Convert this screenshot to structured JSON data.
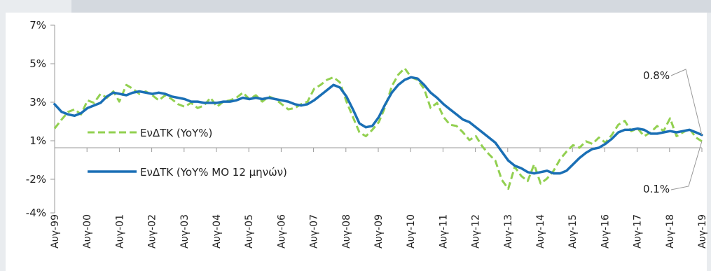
{
  "chart_data": {
    "type": "line",
    "title": "",
    "xlabel": "",
    "ylabel": "",
    "ylim": [
      -4,
      7
    ],
    "y_ticks": [
      "7%",
      "5%",
      "3%",
      "1%",
      "-2%",
      "-4%"
    ],
    "x_ticks": [
      "Αυγ-99",
      "Αυγ-00",
      "Αυγ-01",
      "Αυγ-02",
      "Αυγ-03",
      "Αυγ-04",
      "Αυγ-05",
      "Αυγ-06",
      "Αυγ-07",
      "Αυγ-08",
      "Αυγ-09",
      "Αυγ-10",
      "Αυγ-11",
      "Αυγ-12",
      "Αυγ-13",
      "Αυγ-14",
      "Αυγ-15",
      "Αυγ-16",
      "Αυγ-17",
      "Αυγ-18",
      "Αυγ-19"
    ],
    "x_range": [
      1999.583,
      2019.583
    ],
    "legend_position": "left",
    "grid": false,
    "series": [
      {
        "name": "ΕνΔΤΚ (YoY%)",
        "style": "dashed",
        "color": "#92d050",
        "points": [
          [
            1999.58,
            1.5
          ],
          [
            1999.8,
            2.2
          ],
          [
            2000.0,
            2.8
          ],
          [
            2000.2,
            3.0
          ],
          [
            2000.4,
            2.6
          ],
          [
            2000.6,
            3.7
          ],
          [
            2000.8,
            3.5
          ],
          [
            2001.0,
            4.2
          ],
          [
            2001.2,
            3.9
          ],
          [
            2001.4,
            4.4
          ],
          [
            2001.58,
            3.6
          ],
          [
            2001.8,
            4.9
          ],
          [
            2002.0,
            4.6
          ],
          [
            2002.2,
            4.2
          ],
          [
            2002.4,
            4.4
          ],
          [
            2002.6,
            4.1
          ],
          [
            2002.8,
            3.7
          ],
          [
            2003.0,
            4.1
          ],
          [
            2003.2,
            3.8
          ],
          [
            2003.4,
            3.4
          ],
          [
            2003.6,
            3.2
          ],
          [
            2003.8,
            3.5
          ],
          [
            2004.0,
            3.1
          ],
          [
            2004.2,
            3.3
          ],
          [
            2004.4,
            3.9
          ],
          [
            2004.6,
            3.2
          ],
          [
            2004.8,
            3.6
          ],
          [
            2005.0,
            3.7
          ],
          [
            2005.2,
            3.9
          ],
          [
            2005.4,
            4.3
          ],
          [
            2005.6,
            3.8
          ],
          [
            2005.8,
            4.1
          ],
          [
            2006.0,
            3.6
          ],
          [
            2006.2,
            4.0
          ],
          [
            2006.4,
            3.8
          ],
          [
            2006.6,
            3.4
          ],
          [
            2006.8,
            3.0
          ],
          [
            2007.0,
            3.1
          ],
          [
            2007.2,
            3.4
          ],
          [
            2007.4,
            3.6
          ],
          [
            2007.6,
            4.6
          ],
          [
            2007.8,
            4.9
          ],
          [
            2008.0,
            5.3
          ],
          [
            2008.2,
            5.5
          ],
          [
            2008.4,
            5.1
          ],
          [
            2008.6,
            3.6
          ],
          [
            2008.8,
            2.4
          ],
          [
            2009.0,
            1.2
          ],
          [
            2009.2,
            0.9
          ],
          [
            2009.4,
            1.4
          ],
          [
            2009.6,
            2.0
          ],
          [
            2009.8,
            3.2
          ],
          [
            2010.0,
            4.8
          ],
          [
            2010.2,
            5.7
          ],
          [
            2010.4,
            6.2
          ],
          [
            2010.6,
            5.5
          ],
          [
            2010.8,
            5.3
          ],
          [
            2011.0,
            4.6
          ],
          [
            2011.2,
            3.1
          ],
          [
            2011.4,
            3.5
          ],
          [
            2011.6,
            2.4
          ],
          [
            2011.8,
            1.8
          ],
          [
            2012.0,
            1.7
          ],
          [
            2012.2,
            1.2
          ],
          [
            2012.4,
            0.6
          ],
          [
            2012.6,
            0.9
          ],
          [
            2012.8,
            0.1
          ],
          [
            2013.0,
            -0.5
          ],
          [
            2013.2,
            -1.0
          ],
          [
            2013.4,
            -2.5
          ],
          [
            2013.6,
            -3.2
          ],
          [
            2013.8,
            -1.5
          ],
          [
            2014.0,
            -2.2
          ],
          [
            2014.2,
            -2.6
          ],
          [
            2014.4,
            -1.3
          ],
          [
            2014.6,
            -2.8
          ],
          [
            2014.8,
            -2.4
          ],
          [
            2015.0,
            -1.8
          ],
          [
            2015.2,
            -0.9
          ],
          [
            2015.4,
            -0.3
          ],
          [
            2015.6,
            0.2
          ],
          [
            2015.8,
            0.0
          ],
          [
            2016.0,
            0.5
          ],
          [
            2016.2,
            0.3
          ],
          [
            2016.4,
            0.8
          ],
          [
            2016.6,
            0.4
          ],
          [
            2016.8,
            1.0
          ],
          [
            2017.0,
            1.8
          ],
          [
            2017.2,
            2.1
          ],
          [
            2017.4,
            1.3
          ],
          [
            2017.6,
            1.5
          ],
          [
            2017.8,
            0.9
          ],
          [
            2018.0,
            1.2
          ],
          [
            2018.2,
            1.7
          ],
          [
            2018.4,
            1.3
          ],
          [
            2018.6,
            2.3
          ],
          [
            2018.8,
            0.9
          ],
          [
            2019.0,
            1.2
          ],
          [
            2019.2,
            1.5
          ],
          [
            2019.4,
            0.8
          ],
          [
            2019.58,
            0.5
          ]
        ]
      },
      {
        "name": "ΕνΔΤΚ (YoY% MO 12 μηνών)",
        "style": "solid",
        "color": "#1a6fb5",
        "points": [
          [
            1999.58,
            3.4
          ],
          [
            1999.8,
            2.8
          ],
          [
            2000.0,
            2.6
          ],
          [
            2000.2,
            2.5
          ],
          [
            2000.4,
            2.7
          ],
          [
            2000.6,
            3.1
          ],
          [
            2000.8,
            3.3
          ],
          [
            2001.0,
            3.5
          ],
          [
            2001.2,
            4.0
          ],
          [
            2001.4,
            4.3
          ],
          [
            2001.6,
            4.2
          ],
          [
            2001.8,
            4.1
          ],
          [
            2002.0,
            4.3
          ],
          [
            2002.2,
            4.4
          ],
          [
            2002.4,
            4.3
          ],
          [
            2002.6,
            4.2
          ],
          [
            2002.8,
            4.3
          ],
          [
            2003.0,
            4.2
          ],
          [
            2003.2,
            4.0
          ],
          [
            2003.4,
            3.9
          ],
          [
            2003.6,
            3.8
          ],
          [
            2003.8,
            3.6
          ],
          [
            2004.0,
            3.6
          ],
          [
            2004.2,
            3.5
          ],
          [
            2004.4,
            3.5
          ],
          [
            2004.6,
            3.5
          ],
          [
            2004.8,
            3.6
          ],
          [
            2005.0,
            3.6
          ],
          [
            2005.2,
            3.7
          ],
          [
            2005.4,
            3.9
          ],
          [
            2005.6,
            3.8
          ],
          [
            2005.8,
            3.9
          ],
          [
            2006.0,
            3.8
          ],
          [
            2006.2,
            3.9
          ],
          [
            2006.4,
            3.8
          ],
          [
            2006.6,
            3.7
          ],
          [
            2006.8,
            3.6
          ],
          [
            2007.0,
            3.4
          ],
          [
            2007.2,
            3.3
          ],
          [
            2007.4,
            3.4
          ],
          [
            2007.6,
            3.7
          ],
          [
            2007.8,
            4.1
          ],
          [
            2008.0,
            4.5
          ],
          [
            2008.2,
            4.9
          ],
          [
            2008.4,
            4.7
          ],
          [
            2008.6,
            4.0
          ],
          [
            2008.8,
            3.0
          ],
          [
            2009.0,
            1.9
          ],
          [
            2009.2,
            1.6
          ],
          [
            2009.4,
            1.7
          ],
          [
            2009.6,
            2.4
          ],
          [
            2009.8,
            3.4
          ],
          [
            2010.0,
            4.3
          ],
          [
            2010.2,
            4.9
          ],
          [
            2010.4,
            5.3
          ],
          [
            2010.6,
            5.5
          ],
          [
            2010.8,
            5.4
          ],
          [
            2011.0,
            4.9
          ],
          [
            2011.2,
            4.3
          ],
          [
            2011.4,
            3.9
          ],
          [
            2011.6,
            3.4
          ],
          [
            2011.8,
            3.0
          ],
          [
            2012.0,
            2.6
          ],
          [
            2012.2,
            2.2
          ],
          [
            2012.4,
            2.0
          ],
          [
            2012.6,
            1.6
          ],
          [
            2012.8,
            1.2
          ],
          [
            2013.0,
            0.8
          ],
          [
            2013.2,
            0.4
          ],
          [
            2013.4,
            -0.3
          ],
          [
            2013.6,
            -1.0
          ],
          [
            2013.8,
            -1.4
          ],
          [
            2014.0,
            -1.6
          ],
          [
            2014.2,
            -1.9
          ],
          [
            2014.4,
            -2.0
          ],
          [
            2014.6,
            -1.9
          ],
          [
            2014.8,
            -1.8
          ],
          [
            2015.0,
            -2.0
          ],
          [
            2015.2,
            -2.0
          ],
          [
            2015.4,
            -1.8
          ],
          [
            2015.6,
            -1.3
          ],
          [
            2015.8,
            -0.8
          ],
          [
            2016.0,
            -0.4
          ],
          [
            2016.2,
            -0.1
          ],
          [
            2016.4,
            0.0
          ],
          [
            2016.6,
            0.3
          ],
          [
            2016.8,
            0.7
          ],
          [
            2017.0,
            1.2
          ],
          [
            2017.2,
            1.4
          ],
          [
            2017.4,
            1.4
          ],
          [
            2017.6,
            1.5
          ],
          [
            2017.8,
            1.4
          ],
          [
            2018.0,
            1.1
          ],
          [
            2018.2,
            1.1
          ],
          [
            2018.4,
            1.2
          ],
          [
            2018.6,
            1.3
          ],
          [
            2018.8,
            1.2
          ],
          [
            2019.0,
            1.3
          ],
          [
            2019.2,
            1.4
          ],
          [
            2019.4,
            1.2
          ],
          [
            2019.58,
            1.0
          ]
        ]
      }
    ],
    "annotations": [
      {
        "text": "0.8%",
        "points_to_series": 1
      },
      {
        "text": "0.1%",
        "points_to_series": 0
      }
    ]
  }
}
